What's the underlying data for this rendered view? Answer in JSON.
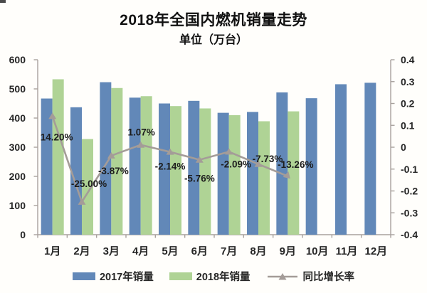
{
  "header": {
    "title": "2018年全国内燃机销量走势",
    "subtitle": "单位（万台）"
  },
  "chart_data": {
    "type": "bar",
    "subtype": "grouped-bars-with-line",
    "title": "2018年全国内燃机销量走势",
    "unit_label": "单位（万台）",
    "categories": [
      "1月",
      "2月",
      "3月",
      "4月",
      "5月",
      "6月",
      "7月",
      "8月",
      "9月",
      "10月",
      "11月",
      "12月"
    ],
    "series": [
      {
        "name": "2017年销量",
        "type": "bar",
        "axis": "left",
        "color": "#6288b8",
        "values": [
          467,
          437,
          523,
          470,
          450,
          459,
          418,
          421,
          488,
          468,
          516,
          521
        ]
      },
      {
        "name": "2018年销量",
        "type": "bar",
        "axis": "left",
        "color": "#afd395",
        "values": [
          533,
          328,
          503,
          475,
          441,
          433,
          410,
          389,
          423,
          null,
          null,
          null
        ]
      },
      {
        "name": "同比增长率",
        "type": "line",
        "axis": "right",
        "color": "#a49c98",
        "values": [
          0.142,
          -0.25,
          -0.0387,
          0.0107,
          -0.0214,
          -0.0576,
          -0.0209,
          -0.0773,
          -0.1326
        ],
        "point_labels": [
          "14.20%",
          "-25.00%",
          "-3.87%",
          "1.07%",
          "-2.14%",
          "-5.76%",
          "-2.09%",
          "-7.73%",
          "-13.26%"
        ],
        "label_offsets": [
          [
            6,
            34
          ],
          [
            10,
            -21
          ],
          [
            3,
            26
          ],
          [
            1,
            -13
          ],
          [
            0,
            25
          ],
          [
            0,
            31
          ],
          [
            10,
            22
          ],
          [
            13,
            -3
          ],
          [
            11,
            -12
          ]
        ]
      }
    ],
    "left_axis": {
      "min": 0,
      "max": 600,
      "step": 100,
      "tick_labels": [
        "600",
        "500",
        "400",
        "300",
        "200",
        "100",
        "0"
      ]
    },
    "right_axis": {
      "min": -0.4,
      "max": 0.4,
      "step": 0.1,
      "tick_labels": [
        "0.4",
        "0.3",
        "0.2",
        "0.1",
        "0",
        "-0.1",
        "-0.2",
        "-0.3",
        "-0.4"
      ]
    },
    "grid": "off",
    "legend_position": "bottom",
    "legend": [
      "2017年销量",
      "2018年销量",
      "同比增长率"
    ],
    "axis_color": "#a8a19d",
    "text_color": "#262626"
  }
}
